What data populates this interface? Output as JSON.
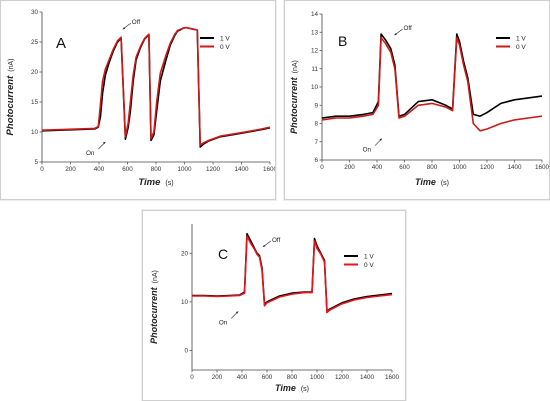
{
  "chart_data": [
    {
      "type": "line",
      "panel_label": "A",
      "xlabel": "Time",
      "xunit": "(s)",
      "ylabel": "Photocurrent",
      "yunit": "(nA)",
      "xlim": [
        0,
        1600
      ],
      "ylim": [
        5,
        30
      ],
      "xticks": [
        "0",
        "200",
        "400",
        "600",
        "800",
        "1000",
        "1200",
        "1400",
        "1600"
      ],
      "yticks": [
        "5",
        "10",
        "15",
        "20",
        "25",
        "30"
      ],
      "annotations": [
        {
          "text": "Off",
          "x": 560,
          "y": 27.3
        },
        {
          "text": "On",
          "x": 410,
          "y": 7.5
        }
      ],
      "legend": {
        "placement": "top-right"
      },
      "series": [
        {
          "name": "1 V",
          "color": "#000000",
          "x": [
            0,
            370,
            395,
            410,
            425,
            445,
            470,
            500,
            530,
            555,
            585,
            605,
            620,
            640,
            660,
            690,
            720,
            750,
            765,
            785,
            805,
            830,
            870,
            900,
            930,
            950,
            970,
            990,
            1010,
            1050,
            1090,
            1110,
            1135,
            1170,
            1250,
            1350,
            1450,
            1540,
            1600
          ],
          "y": [
            10.2,
            10.5,
            10.8,
            12.5,
            16.5,
            19.5,
            21.5,
            23.5,
            25,
            25.6,
            8.8,
            10.8,
            13.5,
            18.5,
            22,
            24,
            25.5,
            26.2,
            8.6,
            9.5,
            13.5,
            18.5,
            22,
            24.5,
            26,
            26.8,
            27,
            27.3,
            27.4,
            27.2,
            27,
            7.5,
            8,
            8.5,
            9.2,
            9.6,
            10,
            10.4,
            10.7
          ]
        },
        {
          "name": "0 V",
          "color": "#cc1a1a",
          "x": [
            0,
            370,
            395,
            410,
            425,
            445,
            470,
            500,
            530,
            555,
            585,
            605,
            620,
            640,
            660,
            690,
            720,
            750,
            765,
            785,
            805,
            830,
            870,
            900,
            930,
            950,
            970,
            990,
            1010,
            1050,
            1090,
            1110,
            1135,
            1170,
            1250,
            1350,
            1450,
            1540,
            1600
          ],
          "y": [
            10.3,
            10.6,
            10.9,
            14.5,
            18.5,
            20.5,
            22,
            23.8,
            25.2,
            25.8,
            9.2,
            11.5,
            15,
            19.5,
            22.5,
            24.2,
            25.6,
            26.3,
            8.9,
            10,
            15,
            19.8,
            22.8,
            24.8,
            26.2,
            26.9,
            27.1,
            27.3,
            27.4,
            27.2,
            27,
            7.8,
            8.2,
            8.6,
            9.3,
            9.7,
            10.1,
            10.5,
            10.8
          ]
        }
      ]
    },
    {
      "type": "line",
      "panel_label": "B",
      "xlabel": "Time",
      "xunit": "(s)",
      "ylabel": "Photocurrent",
      "yunit": "(nA)",
      "xlim": [
        0,
        1600
      ],
      "ylim": [
        6,
        14
      ],
      "xticks": [
        "0",
        "200",
        "400",
        "600",
        "800",
        "1000",
        "1200",
        "1400",
        "1600"
      ],
      "yticks": [
        "6",
        "7",
        "8",
        "9",
        "10",
        "11",
        "12",
        "13",
        "14"
      ],
      "annotations": [
        {
          "text": "Off",
          "x": 520,
          "y": 12.9
        },
        {
          "text": "On",
          "x": 400,
          "y": 6.9
        }
      ],
      "legend": {
        "placement": "top-right"
      },
      "series": [
        {
          "name": "1 V",
          "color": "#000000",
          "x": [
            0,
            100,
            200,
            300,
            370,
            410,
            430,
            460,
            500,
            530,
            560,
            600,
            700,
            800,
            900,
            950,
            980,
            1000,
            1030,
            1060,
            1100,
            1150,
            1200,
            1300,
            1400,
            1500,
            1600
          ],
          "y": [
            8.3,
            8.4,
            8.4,
            8.5,
            8.6,
            9.2,
            12.9,
            12.6,
            12.1,
            11.2,
            8.4,
            8.5,
            9.2,
            9.3,
            9,
            8.8,
            12.9,
            12.5,
            11.4,
            10.5,
            8.5,
            8.4,
            8.6,
            9.1,
            9.3,
            9.4,
            9.5
          ]
        },
        {
          "name": "0 V",
          "color": "#cc1a1a",
          "x": [
            0,
            100,
            200,
            300,
            370,
            410,
            430,
            460,
            500,
            530,
            560,
            600,
            700,
            800,
            900,
            950,
            980,
            1000,
            1030,
            1060,
            1100,
            1150,
            1200,
            1300,
            1400,
            1500,
            1600
          ],
          "y": [
            8.2,
            8.3,
            8.3,
            8.4,
            8.5,
            9,
            12.7,
            12.4,
            11.9,
            11,
            8.3,
            8.4,
            9,
            9.1,
            8.9,
            8.7,
            12.7,
            12.3,
            11.2,
            10.3,
            8,
            7.6,
            7.7,
            8,
            8.2,
            8.3,
            8.4
          ]
        }
      ]
    },
    {
      "type": "line",
      "panel_label": "C",
      "xlabel": "Time",
      "xunit": "(s)",
      "ylabel": "Photocurrent",
      "yunit": "(nA)",
      "xlim": [
        0,
        1600
      ],
      "ylim": [
        -4,
        26
      ],
      "xticks": [
        "0",
        "200",
        "400",
        "600",
        "800",
        "1000",
        "1200",
        "1400",
        "1600"
      ],
      "yticks": [
        "0",
        "10",
        "20"
      ],
      "annotations": [
        {
          "text": "Off",
          "x": 560,
          "y": 21.5
        },
        {
          "text": "On",
          "x": 330,
          "y": 7
        }
      ],
      "legend": {
        "placement": "top-right"
      },
      "series": [
        {
          "name": "1 V",
          "color": "#000000",
          "x": [
            0,
            100,
            200,
            300,
            380,
            420,
            440,
            470,
            500,
            520,
            540,
            560,
            580,
            600,
            700,
            800,
            900,
            960,
            980,
            1000,
            1030,
            1060,
            1080,
            1100,
            1200,
            1300,
            1400,
            1500,
            1600
          ],
          "y": [
            11.3,
            11.3,
            11.2,
            11.3,
            11.4,
            12,
            24,
            22.5,
            21,
            20,
            19.5,
            17,
            9.5,
            10,
            11.2,
            11.8,
            12,
            12,
            23,
            21.5,
            20,
            18.5,
            8,
            8.5,
            9.8,
            10.6,
            11.1,
            11.4,
            11.7
          ]
        },
        {
          "name": "0 V",
          "color": "#e8141c",
          "x": [
            0,
            100,
            200,
            300,
            380,
            420,
            440,
            470,
            500,
            520,
            540,
            560,
            580,
            600,
            700,
            800,
            900,
            960,
            980,
            1000,
            1030,
            1060,
            1080,
            1100,
            1200,
            1300,
            1400,
            1500,
            1600
          ],
          "y": [
            11.2,
            11.2,
            11.1,
            11.2,
            11.3,
            11.8,
            23.5,
            22,
            20.8,
            19.8,
            19.2,
            16.5,
            9.2,
            9.8,
            11,
            11.6,
            11.9,
            11.9,
            22.5,
            21,
            19.8,
            18.2,
            7.8,
            8.3,
            9.6,
            10.4,
            10.9,
            11.2,
            11.5
          ]
        }
      ]
    }
  ]
}
